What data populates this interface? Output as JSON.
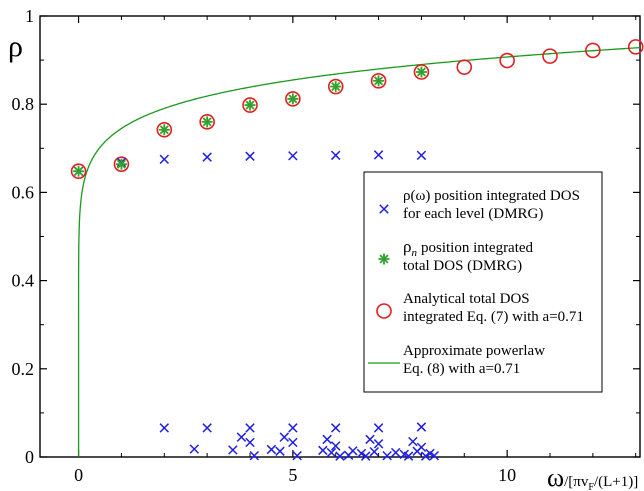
{
  "chart_data": {
    "type": "scatter",
    "ylabel": "ρ",
    "xlabel_main": "ω",
    "xlabel_unit": "/[πv",
    "xlabel_sub": "F",
    "xlabel_tail": "/(L+1)]",
    "xlim": [
      -0.9,
      13.1
    ],
    "ylim": [
      0,
      1
    ],
    "xticks": [
      0,
      5,
      10
    ],
    "yticks": [
      0,
      0.2,
      0.4,
      0.6,
      0.8,
      1
    ],
    "ytick_labels": [
      "0",
      "0.2",
      "0.4",
      "0.6",
      "0.8",
      "1"
    ],
    "xtick_labels": [
      "0",
      "5",
      "10"
    ],
    "grid": false,
    "legend_position": "right",
    "series": [
      {
        "name": "ρ(ω)  position integrated DOS for each level (DMRG)",
        "name_lines": [
          "ρ(ω)  position integrated DOS",
          "for each level (DMRG)"
        ],
        "marker": "x",
        "color": "#1f1fe0",
        "points": [
          [
            0,
            0.648
          ],
          [
            1,
            0.668
          ],
          [
            2,
            0.675
          ],
          [
            3,
            0.68
          ],
          [
            4,
            0.682
          ],
          [
            5,
            0.683
          ],
          [
            6,
            0.684
          ],
          [
            7,
            0.685
          ],
          [
            8,
            0.684
          ],
          [
            2,
            0.066
          ],
          [
            3,
            0.066
          ],
          [
            4,
            0.066
          ],
          [
            5,
            0.066
          ],
          [
            6,
            0.066
          ],
          [
            7,
            0.066
          ],
          [
            8,
            0.068
          ],
          [
            3.8,
            0.045
          ],
          [
            4.8,
            0.045
          ],
          [
            5.8,
            0.04
          ],
          [
            6.8,
            0.04
          ],
          [
            7.8,
            0.035
          ],
          [
            4,
            0.033
          ],
          [
            5,
            0.033
          ],
          [
            6,
            0.025
          ],
          [
            7,
            0.03
          ],
          [
            8,
            0.022
          ],
          [
            2.7,
            0.018
          ],
          [
            3.6,
            0.016
          ],
          [
            4.5,
            0.017
          ],
          [
            4.7,
            0.013
          ],
          [
            5.7,
            0.015
          ],
          [
            5.9,
            0.01
          ],
          [
            6.4,
            0.014
          ],
          [
            6.6,
            0.008
          ],
          [
            6.9,
            0.012
          ],
          [
            7.4,
            0.01
          ],
          [
            7.6,
            0.006
          ],
          [
            7.9,
            0.013
          ],
          [
            8.2,
            0.008
          ],
          [
            4.1,
            0.003
          ],
          [
            5.1,
            0.003
          ],
          [
            6.1,
            0.002
          ],
          [
            6.3,
            0.004
          ],
          [
            6.7,
            0.002
          ],
          [
            7.2,
            0.003
          ],
          [
            7.7,
            0.002
          ],
          [
            8.1,
            0.002
          ],
          [
            8.3,
            0.003
          ]
        ]
      },
      {
        "name": "ρn position integrated total DOS (DMRG)",
        "name_lines": [
          "position integrated",
          "total DOS (DMRG)"
        ],
        "name_symbol": "ρ",
        "name_sub": "n",
        "marker": "star",
        "color": "#33a02c",
        "points": [
          [
            0,
            0.648
          ],
          [
            1,
            0.664
          ],
          [
            2,
            0.742
          ],
          [
            3,
            0.76
          ],
          [
            4,
            0.798
          ],
          [
            5,
            0.812
          ],
          [
            6,
            0.84
          ],
          [
            7,
            0.853
          ],
          [
            8,
            0.873
          ]
        ]
      },
      {
        "name": "Analytical total DOS integrated Eq. (7) with a=0.71",
        "name_lines": [
          "Analytical total DOS",
          "integrated Eq. (7) with a=0.71"
        ],
        "marker": "circle",
        "color": "#e02020",
        "points": [
          [
            0,
            0.648
          ],
          [
            1,
            0.664
          ],
          [
            2,
            0.742
          ],
          [
            3,
            0.76
          ],
          [
            4,
            0.798
          ],
          [
            5,
            0.812
          ],
          [
            6,
            0.84
          ],
          [
            7,
            0.853
          ],
          [
            8,
            0.873
          ],
          [
            9,
            0.884
          ],
          [
            10,
            0.899
          ],
          [
            11,
            0.909
          ],
          [
            12,
            0.922
          ],
          [
            13,
            0.93
          ]
        ]
      },
      {
        "name": "Approximate powerlaw Eq. (8) with a=0.71",
        "name_lines": [
          "Approximate powerlaw",
          "Eq. (8) with a=0.71"
        ],
        "marker": "line",
        "color": "#1a9a1a",
        "formula": "0.745 * x^0.0855",
        "x_range": [
          0,
          13.1
        ]
      }
    ]
  }
}
